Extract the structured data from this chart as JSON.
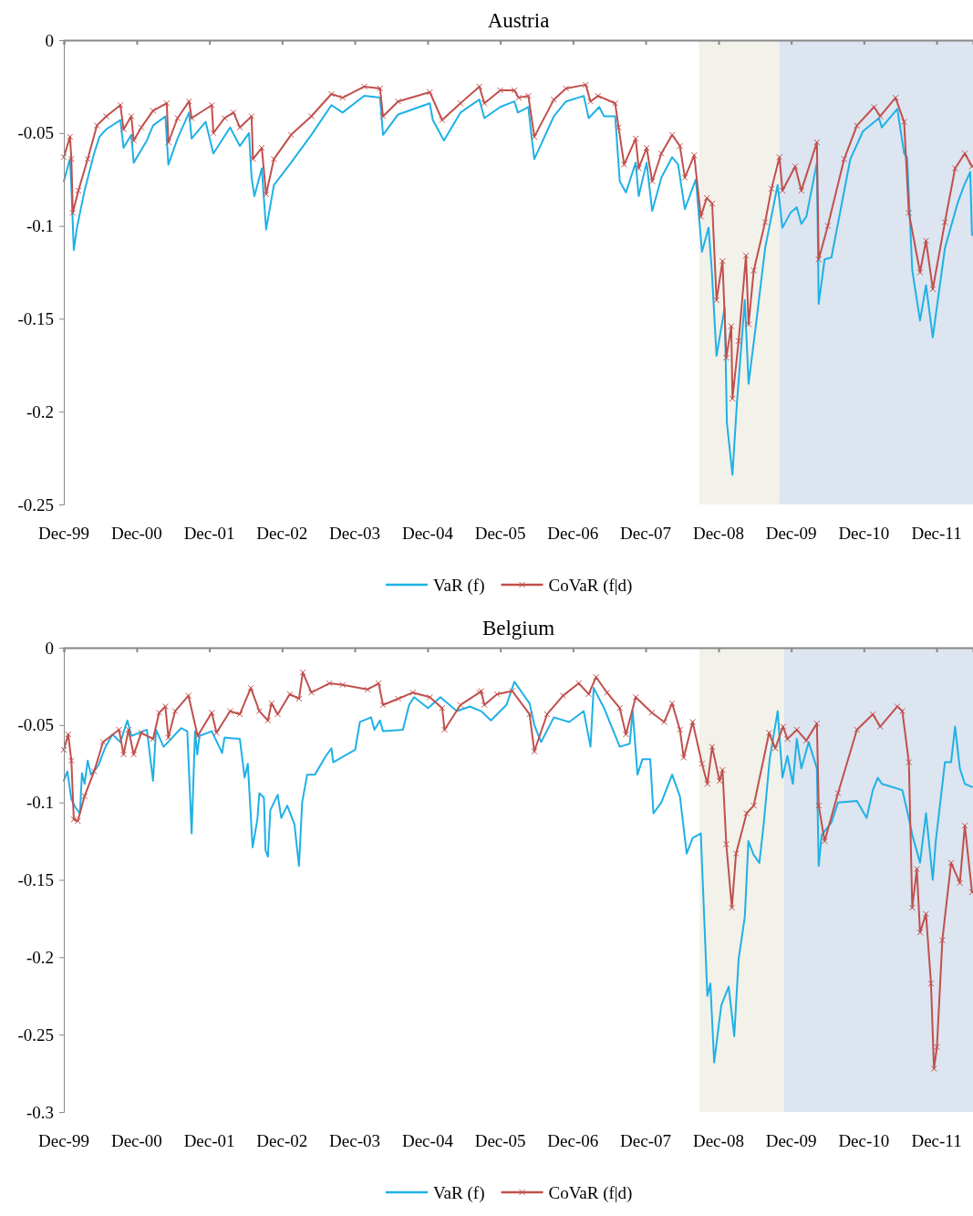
{
  "chart_data": [
    {
      "type": "line",
      "title": "Austria",
      "xlim": [
        "1999-12-01",
        "2012-06-01"
      ],
      "ylim": [
        -0.25,
        0
      ],
      "yticks": [
        0,
        -0.05,
        -0.1,
        -0.15,
        -0.2,
        -0.25
      ],
      "xticks": [
        {
          "value": "1999-12-01",
          "label": "Dec-99"
        },
        {
          "value": "2000-12-01",
          "label": "Dec-00"
        },
        {
          "value": "2001-12-01",
          "label": "Dec-01"
        },
        {
          "value": "2002-12-01",
          "label": "Dec-02"
        },
        {
          "value": "2003-12-01",
          "label": "Dec-03"
        },
        {
          "value": "2004-12-01",
          "label": "Dec-04"
        },
        {
          "value": "2005-12-01",
          "label": "Dec-05"
        },
        {
          "value": "2006-12-01",
          "label": "Dec-06"
        },
        {
          "value": "2007-12-01",
          "label": "Dec-07"
        },
        {
          "value": "2008-12-01",
          "label": "Dec-08"
        },
        {
          "value": "2009-12-01",
          "label": "Dec-09"
        },
        {
          "value": "2010-12-01",
          "label": "Dec-10"
        },
        {
          "value": "2011-12-01",
          "label": "Dec-11"
        }
      ],
      "grid": false,
      "legend": "bottom",
      "bands": [
        {
          "axis": "x",
          "from": "2008-08-25",
          "to": "2009-10-03",
          "color": "#f2f1ea"
        },
        {
          "axis": "x",
          "from": "2009-10-03",
          "to": "2012-06-01",
          "color": "#dce5f0"
        }
      ],
      "series": [
        {
          "name": "VaR (f)",
          "color": "#1fb1e6",
          "marker": "none",
          "x": [
            "1999-12-01",
            "2000-01-01",
            "2000-01-08",
            "2000-01-20",
            "2000-02-05",
            "2000-03-14",
            "2000-05-01",
            "2000-05-28",
            "2000-07-01",
            "2000-09-10",
            "2000-09-26",
            "2000-11-04",
            "2000-11-16",
            "2001-01-21",
            "2001-02-21",
            "2001-04-24",
            "2001-05-09",
            "2001-06-24",
            "2001-08-21",
            "2001-09-03",
            "2001-11-12",
            "2001-12-21",
            "2002-03-15",
            "2002-05-03",
            "2002-06-18",
            "2002-07-01",
            "2002-07-15",
            "2002-08-21",
            "2002-09-12",
            "2002-10-21",
            "2003-01-15",
            "2003-04-27",
            "2003-08-06",
            "2003-10-01",
            "2004-01-18",
            "2004-04-06",
            "2004-04-21",
            "2004-07-06",
            "2004-12-12",
            "2004-12-27",
            "2005-02-21",
            "2005-05-15",
            "2005-08-18",
            "2005-09-12",
            "2005-12-01",
            "2006-02-10",
            "2006-02-27",
            "2006-04-21",
            "2006-05-06",
            "2006-05-21",
            "2006-08-27",
            "2006-10-27",
            "2007-01-24",
            "2007-02-18",
            "2007-04-12",
            "2007-05-06",
            "2007-07-01",
            "2007-07-24",
            "2007-08-24",
            "2007-10-12",
            "2007-10-27",
            "2007-12-06",
            "2008-01-03",
            "2008-02-18",
            "2008-04-12",
            "2008-05-12",
            "2008-06-15",
            "2008-08-09",
            "2008-09-09",
            "2008-10-12",
            "2008-10-27",
            "2008-11-21",
            "2009-01-01",
            "2009-01-12",
            "2009-02-09",
            "2009-03-03",
            "2009-04-12",
            "2009-05-01",
            "2009-06-06",
            "2009-07-23",
            "2009-09-24",
            "2009-10-18",
            "2009-11-27",
            "2009-12-29",
            "2010-01-21",
            "2010-02-15",
            "2010-04-09",
            "2010-04-18",
            "2010-05-18",
            "2010-06-21",
            "2010-09-24",
            "2010-11-27",
            "2011-02-15",
            "2011-03-01",
            "2011-05-18",
            "2011-06-21",
            "2011-07-06",
            "2011-08-01",
            "2011-09-09",
            "2011-10-09",
            "2011-11-12",
            "2012-01-12",
            "2012-03-15",
            "2012-04-18",
            "2012-05-18",
            "2012-05-27"
          ],
          "values": [
            -0.076,
            -0.064,
            -0.079,
            -0.113,
            -0.101,
            -0.081,
            -0.061,
            -0.052,
            -0.048,
            -0.043,
            -0.058,
            -0.051,
            -0.066,
            -0.054,
            -0.046,
            -0.041,
            -0.067,
            -0.053,
            -0.039,
            -0.053,
            -0.044,
            -0.061,
            -0.047,
            -0.057,
            -0.05,
            -0.074,
            -0.084,
            -0.069,
            -0.102,
            -0.078,
            -0.066,
            -0.051,
            -0.035,
            -0.039,
            -0.03,
            -0.031,
            -0.051,
            -0.04,
            -0.034,
            -0.043,
            -0.054,
            -0.039,
            -0.032,
            -0.042,
            -0.036,
            -0.033,
            -0.039,
            -0.036,
            -0.051,
            -0.064,
            -0.041,
            -0.033,
            -0.03,
            -0.042,
            -0.036,
            -0.041,
            -0.041,
            -0.076,
            -0.082,
            -0.066,
            -0.084,
            -0.066,
            -0.092,
            -0.074,
            -0.063,
            -0.067,
            -0.091,
            -0.075,
            -0.114,
            -0.101,
            -0.122,
            -0.17,
            -0.144,
            -0.206,
            -0.234,
            -0.196,
            -0.14,
            -0.185,
            -0.154,
            -0.112,
            -0.078,
            -0.101,
            -0.093,
            -0.09,
            -0.099,
            -0.095,
            -0.066,
            -0.142,
            -0.118,
            -0.117,
            -0.064,
            -0.049,
            -0.042,
            -0.047,
            -0.037,
            -0.061,
            -0.063,
            -0.124,
            -0.151,
            -0.132,
            -0.16,
            -0.112,
            -0.088,
            -0.078,
            -0.071,
            -0.105
          ]
        },
        {
          "name": "CoVaR (f|d)",
          "color": "#c0504d",
          "marker": "cross",
          "x": [
            "1999-12-01",
            "2000-01-01",
            "2000-01-08",
            "2000-01-15",
            "2000-02-12",
            "2000-03-30",
            "2000-05-15",
            "2000-07-01",
            "2000-09-10",
            "2000-09-26",
            "2000-11-04",
            "2000-11-16",
            "2000-12-24",
            "2001-02-21",
            "2001-05-01",
            "2001-05-09",
            "2001-06-24",
            "2001-08-21",
            "2001-09-03",
            "2001-12-13",
            "2001-12-21",
            "2002-02-15",
            "2002-04-01",
            "2002-05-03",
            "2002-07-01",
            "2002-07-08",
            "2002-08-21",
            "2002-09-12",
            "2002-10-21",
            "2003-01-15",
            "2003-04-27",
            "2003-08-06",
            "2003-10-01",
            "2004-01-18",
            "2004-04-06",
            "2004-04-21",
            "2004-07-06",
            "2004-12-12",
            "2005-02-12",
            "2005-05-15",
            "2005-08-18",
            "2005-09-12",
            "2005-12-01",
            "2006-02-10",
            "2006-03-03",
            "2006-04-21",
            "2006-05-21",
            "2006-08-27",
            "2006-10-27",
            "2007-02-03",
            "2007-02-27",
            "2007-04-06",
            "2007-07-01",
            "2007-07-18",
            "2007-08-15",
            "2007-10-12",
            "2007-10-27",
            "2007-12-06",
            "2008-01-03",
            "2008-02-18",
            "2008-04-12",
            "2008-05-21",
            "2008-06-15",
            "2008-08-01",
            "2008-09-03",
            "2008-10-03",
            "2008-10-30",
            "2008-11-21",
            "2008-12-21",
            "2009-01-09",
            "2009-02-03",
            "2009-02-09",
            "2009-03-12",
            "2009-04-18",
            "2009-05-01",
            "2009-05-27",
            "2009-07-23",
            "2009-08-24",
            "2009-10-03",
            "2009-10-18",
            "2009-12-21",
            "2010-01-21",
            "2010-04-09",
            "2010-04-18",
            "2010-06-03",
            "2010-08-24",
            "2010-10-27",
            "2011-01-21",
            "2011-02-21",
            "2011-05-09",
            "2011-06-21",
            "2011-07-15",
            "2011-09-09",
            "2011-10-09",
            "2011-11-12",
            "2012-01-12",
            "2012-03-03",
            "2012-04-21",
            "2012-05-27"
          ],
          "values": [
            -0.063,
            -0.052,
            -0.064,
            -0.093,
            -0.081,
            -0.064,
            -0.046,
            -0.041,
            -0.035,
            -0.048,
            -0.041,
            -0.054,
            -0.047,
            -0.038,
            -0.034,
            -0.055,
            -0.042,
            -0.033,
            -0.042,
            -0.035,
            -0.05,
            -0.042,
            -0.039,
            -0.047,
            -0.041,
            -0.064,
            -0.058,
            -0.083,
            -0.064,
            -0.051,
            -0.041,
            -0.029,
            -0.031,
            -0.025,
            -0.026,
            -0.041,
            -0.033,
            -0.028,
            -0.043,
            -0.034,
            -0.025,
            -0.034,
            -0.027,
            -0.027,
            -0.031,
            -0.03,
            -0.052,
            -0.032,
            -0.026,
            -0.024,
            -0.033,
            -0.03,
            -0.034,
            -0.047,
            -0.067,
            -0.053,
            -0.069,
            -0.058,
            -0.076,
            -0.061,
            -0.051,
            -0.057,
            -0.074,
            -0.062,
            -0.095,
            -0.085,
            -0.088,
            -0.14,
            -0.119,
            -0.171,
            -0.154,
            -0.193,
            -0.162,
            -0.116,
            -0.153,
            -0.124,
            -0.098,
            -0.08,
            -0.063,
            -0.081,
            -0.068,
            -0.081,
            -0.055,
            -0.118,
            -0.1,
            -0.064,
            -0.046,
            -0.036,
            -0.041,
            -0.031,
            -0.044,
            -0.093,
            -0.125,
            -0.108,
            -0.134,
            -0.098,
            -0.069,
            -0.061,
            -0.068
          ]
        }
      ]
    },
    {
      "type": "line",
      "title": "Belgium",
      "xlim": [
        "1999-12-01",
        "2012-06-01"
      ],
      "ylim": [
        -0.3,
        0
      ],
      "yticks": [
        0,
        -0.05,
        -0.1,
        -0.15,
        -0.2,
        -0.25,
        -0.3
      ],
      "xticks": [
        {
          "value": "1999-12-01",
          "label": "Dec-99"
        },
        {
          "value": "2000-12-01",
          "label": "Dec-00"
        },
        {
          "value": "2001-12-01",
          "label": "Dec-01"
        },
        {
          "value": "2002-12-01",
          "label": "Dec-02"
        },
        {
          "value": "2003-12-01",
          "label": "Dec-03"
        },
        {
          "value": "2004-12-01",
          "label": "Dec-04"
        },
        {
          "value": "2005-12-01",
          "label": "Dec-05"
        },
        {
          "value": "2006-12-01",
          "label": "Dec-06"
        },
        {
          "value": "2007-12-01",
          "label": "Dec-07"
        },
        {
          "value": "2008-12-01",
          "label": "Dec-08"
        },
        {
          "value": "2009-12-01",
          "label": "Dec-09"
        },
        {
          "value": "2010-12-01",
          "label": "Dec-10"
        },
        {
          "value": "2011-12-01",
          "label": "Dec-11"
        }
      ],
      "grid": false,
      "legend": "bottom",
      "bands": [
        {
          "axis": "x",
          "from": "2008-08-27",
          "to": "2009-10-27",
          "color": "#f2f1ea"
        },
        {
          "axis": "x",
          "from": "2009-10-27",
          "to": "2012-06-01",
          "color": "#dce5f0"
        }
      ],
      "series": [
        {
          "name": "VaR (f)",
          "color": "#1fb1e6",
          "marker": "none",
          "x": [
            "1999-12-01",
            "1999-12-19",
            "2000-01-08",
            "2000-01-27",
            "2000-02-20",
            "2000-03-01",
            "2000-03-14",
            "2000-03-30",
            "2000-04-15",
            "2000-05-23",
            "2000-06-24",
            "2000-08-01",
            "2000-09-10",
            "2000-10-15",
            "2000-11-04",
            "2001-01-21",
            "2001-02-21",
            "2001-03-08",
            "2001-04-15",
            "2001-07-12",
            "2001-08-12",
            "2001-09-03",
            "2001-09-20",
            "2001-10-01",
            "2001-10-12",
            "2001-12-13",
            "2002-02-03",
            "2002-02-15",
            "2002-05-03",
            "2002-05-27",
            "2002-06-12",
            "2002-07-06",
            "2002-07-30",
            "2002-08-09",
            "2002-09-01",
            "2002-09-09",
            "2002-09-21",
            "2002-10-03",
            "2002-11-09",
            "2002-11-27",
            "2002-12-27",
            "2003-02-01",
            "2003-02-24",
            "2003-03-12",
            "2003-04-06",
            "2003-05-15",
            "2003-07-09",
            "2003-08-06",
            "2003-08-15",
            "2003-12-03",
            "2003-12-27",
            "2004-02-21",
            "2004-03-09",
            "2004-04-06",
            "2004-04-21",
            "2004-07-30",
            "2004-08-30",
            "2004-09-24",
            "2004-12-03",
            "2005-02-03",
            "2005-04-27",
            "2005-07-01",
            "2005-08-27",
            "2005-10-15",
            "2006-01-01",
            "2006-02-10",
            "2006-04-27",
            "2006-05-21",
            "2006-06-24",
            "2006-08-27",
            "2006-11-12",
            "2007-01-24",
            "2007-02-27",
            "2007-03-15",
            "2007-05-06",
            "2007-07-24",
            "2007-09-12",
            "2007-09-27",
            "2007-10-21",
            "2007-11-15",
            "2007-12-24",
            "2008-01-09",
            "2008-02-18",
            "2008-04-12",
            "2008-05-21",
            "2008-06-24",
            "2008-07-24",
            "2008-09-03",
            "2008-09-18",
            "2008-10-06",
            "2008-10-21",
            "2008-11-09",
            "2008-12-15",
            "2009-01-21",
            "2009-02-18",
            "2009-03-12",
            "2009-04-12",
            "2009-04-30",
            "2009-05-27",
            "2009-06-24",
            "2009-07-15",
            "2009-08-15",
            "2009-09-24",
            "2009-10-18",
            "2009-11-12",
            "2009-12-09",
            "2009-12-29",
            "2010-01-21",
            "2010-02-27",
            "2010-04-09",
            "2010-04-18",
            "2010-05-03",
            "2010-06-21",
            "2010-07-24",
            "2010-10-27",
            "2010-12-15",
            "2011-01-15",
            "2011-02-09",
            "2011-03-01",
            "2011-06-12",
            "2011-07-06",
            "2011-08-01",
            "2011-09-09",
            "2011-10-09",
            "2011-11-12",
            "2011-11-27",
            "2012-01-12",
            "2012-02-12",
            "2012-03-03",
            "2012-03-27",
            "2012-04-21",
            "2012-05-27"
          ],
          "values": [
            -0.086,
            -0.08,
            -0.098,
            -0.103,
            -0.107,
            -0.081,
            -0.088,
            -0.073,
            -0.082,
            -0.076,
            -0.065,
            -0.056,
            -0.061,
            -0.047,
            -0.057,
            -0.053,
            -0.086,
            -0.053,
            -0.064,
            -0.052,
            -0.054,
            -0.12,
            -0.054,
            -0.069,
            -0.057,
            -0.054,
            -0.068,
            -0.058,
            -0.059,
            -0.084,
            -0.075,
            -0.129,
            -0.111,
            -0.094,
            -0.097,
            -0.131,
            -0.135,
            -0.105,
            -0.095,
            -0.11,
            -0.102,
            -0.114,
            -0.141,
            -0.1,
            -0.082,
            -0.082,
            -0.07,
            -0.065,
            -0.074,
            -0.066,
            -0.048,
            -0.045,
            -0.053,
            -0.047,
            -0.054,
            -0.053,
            -0.037,
            -0.032,
            -0.039,
            -0.032,
            -0.041,
            -0.038,
            -0.041,
            -0.047,
            -0.037,
            -0.022,
            -0.036,
            -0.05,
            -0.061,
            -0.045,
            -0.048,
            -0.041,
            -0.064,
            -0.026,
            -0.039,
            -0.064,
            -0.062,
            -0.041,
            -0.082,
            -0.072,
            -0.072,
            -0.107,
            -0.1,
            -0.082,
            -0.096,
            -0.133,
            -0.123,
            -0.12,
            -0.168,
            -0.225,
            -0.217,
            -0.268,
            -0.231,
            -0.219,
            -0.251,
            -0.201,
            -0.174,
            -0.125,
            -0.134,
            -0.139,
            -0.115,
            -0.072,
            -0.041,
            -0.084,
            -0.07,
            -0.088,
            -0.059,
            -0.078,
            -0.061,
            -0.078,
            -0.141,
            -0.121,
            -0.113,
            -0.1,
            -0.099,
            -0.11,
            -0.092,
            -0.084,
            -0.088,
            -0.092,
            -0.105,
            -0.121,
            -0.139,
            -0.107,
            -0.15,
            -0.125,
            -0.074,
            -0.074,
            -0.051,
            -0.078,
            -0.088,
            -0.09
          ]
        },
        {
          "name": "CoVaR (f|d)",
          "color": "#c0504d",
          "marker": "cross",
          "x": [
            "1999-12-01",
            "1999-12-23",
            "2000-01-08",
            "2000-01-20",
            "2000-02-09",
            "2000-03-14",
            "2000-05-01",
            "2000-06-15",
            "2000-09-03",
            "2000-09-26",
            "2000-10-21",
            "2000-11-16",
            "2000-12-24",
            "2001-02-21",
            "2001-03-24",
            "2001-04-24",
            "2001-05-09",
            "2001-06-12",
            "2001-08-18",
            "2001-10-03",
            "2001-12-13",
            "2002-01-06",
            "2002-03-15",
            "2002-05-03",
            "2002-06-27",
            "2002-08-09",
            "2002-09-21",
            "2002-10-09",
            "2002-11-09",
            "2003-01-09",
            "2003-02-24",
            "2003-03-15",
            "2003-04-27",
            "2003-07-27",
            "2003-10-01",
            "2004-02-03",
            "2004-03-30",
            "2004-04-21",
            "2004-07-06",
            "2004-09-18",
            "2004-12-12",
            "2005-02-12",
            "2005-02-24",
            "2005-05-15",
            "2005-08-18",
            "2005-08-27",
            "2005-09-12",
            "2005-11-15",
            "2006-01-30",
            "2006-04-27",
            "2006-05-21",
            "2006-07-24",
            "2006-10-12",
            "2006-12-30",
            "2007-02-18",
            "2007-03-27",
            "2007-05-21",
            "2007-07-24",
            "2007-08-24",
            "2007-10-12",
            "2008-01-01",
            "2008-03-03",
            "2008-04-12",
            "2008-05-21",
            "2008-06-09",
            "2008-07-24",
            "2008-09-09",
            "2008-10-06",
            "2008-10-30",
            "2008-12-06",
            "2008-12-21",
            "2009-01-09",
            "2009-02-06",
            "2009-02-27",
            "2009-04-21",
            "2009-05-27",
            "2009-08-12",
            "2009-09-12",
            "2009-10-21",
            "2009-11-12",
            "2009-12-29",
            "2010-02-15",
            "2010-04-09",
            "2010-04-18",
            "2010-05-18",
            "2010-07-24",
            "2010-10-27",
            "2011-01-15",
            "2011-02-21",
            "2011-05-18",
            "2011-06-12",
            "2011-07-15",
            "2011-08-01",
            "2011-08-24",
            "2011-09-09",
            "2011-10-09",
            "2011-11-03",
            "2011-11-18",
            "2011-12-03",
            "2011-12-30",
            "2012-02-12",
            "2012-03-27",
            "2012-04-21",
            "2012-05-27"
          ],
          "values": [
            -0.066,
            -0.056,
            -0.073,
            -0.111,
            -0.112,
            -0.096,
            -0.08,
            -0.061,
            -0.053,
            -0.069,
            -0.053,
            -0.069,
            -0.055,
            -0.059,
            -0.042,
            -0.038,
            -0.058,
            -0.041,
            -0.031,
            -0.057,
            -0.042,
            -0.055,
            -0.041,
            -0.043,
            -0.026,
            -0.041,
            -0.047,
            -0.036,
            -0.043,
            -0.03,
            -0.033,
            -0.016,
            -0.029,
            -0.023,
            -0.024,
            -0.027,
            -0.023,
            -0.037,
            -0.033,
            -0.029,
            -0.032,
            -0.039,
            -0.053,
            -0.037,
            -0.029,
            -0.028,
            -0.037,
            -0.03,
            -0.028,
            -0.043,
            -0.067,
            -0.043,
            -0.031,
            -0.023,
            -0.03,
            -0.019,
            -0.029,
            -0.039,
            -0.056,
            -0.032,
            -0.042,
            -0.048,
            -0.036,
            -0.053,
            -0.071,
            -0.048,
            -0.075,
            -0.088,
            -0.064,
            -0.086,
            -0.079,
            -0.127,
            -0.168,
            -0.133,
            -0.107,
            -0.102,
            -0.055,
            -0.065,
            -0.051,
            -0.059,
            -0.053,
            -0.06,
            -0.049,
            -0.102,
            -0.125,
            -0.094,
            -0.053,
            -0.043,
            -0.051,
            -0.038,
            -0.041,
            -0.074,
            -0.168,
            -0.143,
            -0.184,
            -0.172,
            -0.217,
            -0.272,
            -0.258,
            -0.189,
            -0.139,
            -0.152,
            -0.115,
            -0.158
          ]
        }
      ]
    }
  ]
}
